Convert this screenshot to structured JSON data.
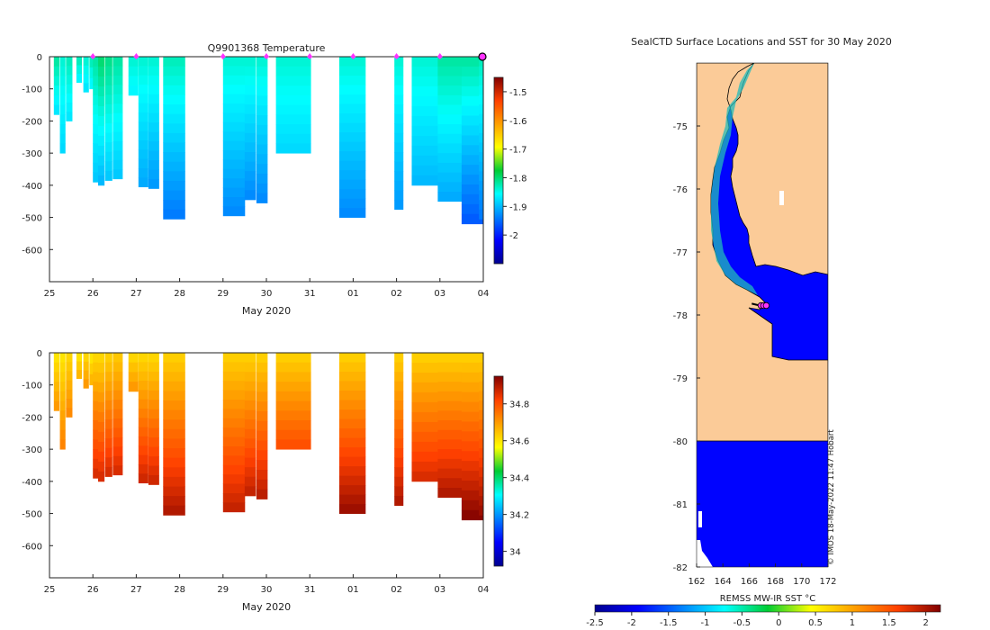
{
  "chart_data": [
    {
      "type": "heatmap",
      "title": "Q9901368  Temperature",
      "xlabel": "May 2020",
      "ylabel": "",
      "x_tick_labels": [
        "25",
        "26",
        "27",
        "28",
        "29",
        "30",
        "31",
        "01",
        "02",
        "03",
        "04"
      ],
      "y_tick_labels": [
        "0",
        "-100",
        "-200",
        "-300",
        "-400",
        "-500",
        "-600"
      ],
      "ylim": [
        -700,
        0
      ],
      "colorbar": {
        "range": [
          -2.1,
          -1.45
        ],
        "ticks": [
          "-1.5",
          "-1.6",
          "-1.7",
          "-1.8",
          "-1.9",
          "-2"
        ],
        "tick_values": [
          -1.5,
          -1.6,
          -1.7,
          -1.8,
          -1.9,
          -2.0
        ]
      },
      "surface_markers_day": [
        1,
        2,
        4,
        5,
        6,
        7,
        8,
        9,
        10
      ],
      "profiles": [
        {
          "day": 0.1,
          "width": 0.12,
          "depth": 180,
          "top": -1.82,
          "bottom": -1.87
        },
        {
          "day": 0.24,
          "width": 0.12,
          "depth": 300,
          "top": -1.84,
          "bottom": -1.88
        },
        {
          "day": 0.38,
          "width": 0.14,
          "depth": 200,
          "top": -1.83,
          "bottom": -1.87
        },
        {
          "day": 0.62,
          "width": 0.12,
          "depth": 80,
          "top": -1.83,
          "bottom": -1.86
        },
        {
          "day": 0.78,
          "width": 0.12,
          "depth": 110,
          "top": -1.84,
          "bottom": -1.87
        },
        {
          "day": 0.92,
          "width": 0.1,
          "depth": 100,
          "top": -1.83,
          "bottom": -1.86
        },
        {
          "day": 1.0,
          "width": 0.12,
          "depth": 390,
          "top": -1.82,
          "bottom": -1.89
        },
        {
          "day": 1.12,
          "width": 0.14,
          "depth": 400,
          "top": -1.8,
          "bottom": -1.9
        },
        {
          "day": 1.28,
          "width": 0.16,
          "depth": 385,
          "top": -1.81,
          "bottom": -1.89
        },
        {
          "day": 1.46,
          "width": 0.22,
          "depth": 380,
          "top": -1.82,
          "bottom": -1.89
        },
        {
          "day": 1.82,
          "width": 0.22,
          "depth": 120,
          "top": -1.84,
          "bottom": -1.86
        },
        {
          "day": 2.05,
          "width": 0.22,
          "depth": 405,
          "top": -1.84,
          "bottom": -1.91
        },
        {
          "day": 2.28,
          "width": 0.24,
          "depth": 410,
          "top": -1.84,
          "bottom": -1.92
        },
        {
          "day": 2.62,
          "width": 0.5,
          "depth": 505,
          "top": -1.83,
          "bottom": -1.94
        },
        {
          "day": 4.0,
          "width": 0.5,
          "depth": 495,
          "top": -1.84,
          "bottom": -1.93
        },
        {
          "day": 4.5,
          "width": 0.25,
          "depth": 445,
          "top": -1.84,
          "bottom": -1.93
        },
        {
          "day": 4.77,
          "width": 0.25,
          "depth": 455,
          "top": -1.84,
          "bottom": -1.93
        },
        {
          "day": 5.22,
          "width": 0.4,
          "depth": 300,
          "top": -1.84,
          "bottom": -1.88
        },
        {
          "day": 5.62,
          "width": 0.4,
          "depth": 300,
          "top": -1.84,
          "bottom": -1.88
        },
        {
          "day": 6.68,
          "width": 0.6,
          "depth": 500,
          "top": -1.84,
          "bottom": -1.93
        },
        {
          "day": 7.95,
          "width": 0.2,
          "depth": 475,
          "top": -1.84,
          "bottom": -1.92
        },
        {
          "day": 8.35,
          "width": 0.6,
          "depth": 400,
          "top": -1.84,
          "bottom": -1.9
        },
        {
          "day": 8.95,
          "width": 0.6,
          "depth": 450,
          "top": -1.82,
          "bottom": -1.91
        },
        {
          "day": 9.5,
          "width": 0.55,
          "depth": 520,
          "top": -1.82,
          "bottom": -1.96
        },
        {
          "day": 9.9,
          "width": 0.2,
          "depth": 505,
          "top": -1.83,
          "bottom": -1.94
        }
      ]
    },
    {
      "type": "heatmap",
      "title": "",
      "xlabel": "May 2020",
      "ylabel": "",
      "x_tick_labels": [
        "25",
        "26",
        "27",
        "28",
        "29",
        "30",
        "31",
        "01",
        "02",
        "03",
        "04"
      ],
      "y_tick_labels": [
        "0",
        "-100",
        "-200",
        "-300",
        "-400",
        "-500",
        "-600"
      ],
      "ylim": [
        -700,
        0
      ],
      "colorbar": {
        "range": [
          33.92,
          34.95
        ],
        "ticks": [
          "34.8",
          "34.6",
          "34.4",
          "34.2",
          "34"
        ],
        "tick_values": [
          34.8,
          34.6,
          34.4,
          34.2,
          34.0
        ]
      },
      "profiles": [
        {
          "day": 0.1,
          "width": 0.12,
          "depth": 180,
          "top": 34.6,
          "bottom": 34.7
        },
        {
          "day": 0.24,
          "width": 0.12,
          "depth": 300,
          "top": 34.6,
          "bottom": 34.73
        },
        {
          "day": 0.38,
          "width": 0.14,
          "depth": 200,
          "top": 34.62,
          "bottom": 34.72
        },
        {
          "day": 0.62,
          "width": 0.12,
          "depth": 80,
          "top": 34.6,
          "bottom": 34.66
        },
        {
          "day": 0.78,
          "width": 0.12,
          "depth": 110,
          "top": 34.62,
          "bottom": 34.7
        },
        {
          "day": 0.92,
          "width": 0.1,
          "depth": 100,
          "top": 34.6,
          "bottom": 34.66
        },
        {
          "day": 1.0,
          "width": 0.12,
          "depth": 390,
          "top": 34.62,
          "bottom": 34.86
        },
        {
          "day": 1.12,
          "width": 0.14,
          "depth": 400,
          "top": 34.62,
          "bottom": 34.86
        },
        {
          "day": 1.28,
          "width": 0.16,
          "depth": 385,
          "top": 34.63,
          "bottom": 34.86
        },
        {
          "day": 1.46,
          "width": 0.22,
          "depth": 380,
          "top": 34.64,
          "bottom": 34.86
        },
        {
          "day": 1.82,
          "width": 0.22,
          "depth": 120,
          "top": 34.62,
          "bottom": 34.7
        },
        {
          "day": 2.05,
          "width": 0.22,
          "depth": 405,
          "top": 34.62,
          "bottom": 34.87
        },
        {
          "day": 2.28,
          "width": 0.24,
          "depth": 410,
          "top": 34.62,
          "bottom": 34.87
        },
        {
          "day": 2.62,
          "width": 0.5,
          "depth": 505,
          "top": 34.63,
          "bottom": 34.9
        },
        {
          "day": 4.0,
          "width": 0.5,
          "depth": 495,
          "top": 34.63,
          "bottom": 34.88
        },
        {
          "day": 4.5,
          "width": 0.25,
          "depth": 445,
          "top": 34.63,
          "bottom": 34.88
        },
        {
          "day": 4.77,
          "width": 0.25,
          "depth": 455,
          "top": 34.63,
          "bottom": 34.89
        },
        {
          "day": 5.22,
          "width": 0.4,
          "depth": 300,
          "top": 34.63,
          "bottom": 34.8
        },
        {
          "day": 5.62,
          "width": 0.4,
          "depth": 300,
          "top": 34.63,
          "bottom": 34.8
        },
        {
          "day": 6.68,
          "width": 0.6,
          "depth": 500,
          "top": 34.63,
          "bottom": 34.92
        },
        {
          "day": 7.95,
          "width": 0.2,
          "depth": 475,
          "top": 34.63,
          "bottom": 34.9
        },
        {
          "day": 8.35,
          "width": 0.6,
          "depth": 400,
          "top": 34.63,
          "bottom": 34.86
        },
        {
          "day": 8.95,
          "width": 0.6,
          "depth": 450,
          "top": 34.63,
          "bottom": 34.9
        },
        {
          "day": 9.5,
          "width": 0.55,
          "depth": 520,
          "top": 34.63,
          "bottom": 34.94
        },
        {
          "day": 9.9,
          "width": 0.2,
          "depth": 505,
          "top": 34.63,
          "bottom": 34.92
        }
      ]
    },
    {
      "type": "heatmap",
      "title": "SealCTD Surface Locations and SST for 30 May 2020",
      "xlabel": "REMSS MW-IR SST °C",
      "x_tick_labels": [
        "162",
        "164",
        "166",
        "168",
        "170",
        "172"
      ],
      "x_tick_values": [
        162,
        164,
        166,
        168,
        170,
        172
      ],
      "y_tick_labels": [
        "-75",
        "-76",
        "-77",
        "-78",
        "-79",
        "-80",
        "-81",
        "-82"
      ],
      "y_tick_values": [
        -75,
        -76,
        -77,
        -78,
        -79,
        -80,
        -81,
        -82
      ],
      "xlim": [
        162,
        172
      ],
      "ylim": [
        -82,
        -74
      ],
      "sst_value": -1.9,
      "seal_positions": [
        {
          "lon": 166.9,
          "lat": -77.85
        },
        {
          "lon": 167.1,
          "lat": -77.85
        },
        {
          "lon": 167.3,
          "lat": -77.85
        }
      ],
      "colorbar": {
        "range": [
          -2.5,
          2.2
        ],
        "ticks": [
          "-2.5",
          "-2",
          "-1.5",
          "-1",
          "-0.5",
          "0",
          "0.5",
          "1",
          "1.5",
          "2"
        ],
        "tick_values": [
          -2.5,
          -2.0,
          -1.5,
          -1.0,
          -0.5,
          0.0,
          0.5,
          1.0,
          1.5,
          2.0
        ]
      },
      "credit": "© IMOS 18-May-2022 11:47 Hobart"
    }
  ],
  "colors": {
    "land": "#fbcb98",
    "seal_marker": "#ff33ff",
    "axis": "#222222"
  }
}
